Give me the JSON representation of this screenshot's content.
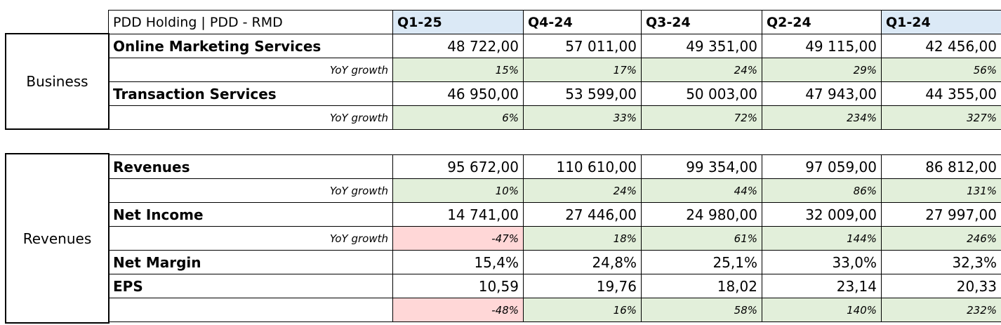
{
  "header": {
    "title": "PDD Holding | PDD - RMD",
    "quarters": [
      "Q1-25",
      "Q4-24",
      "Q3-24",
      "Q2-24",
      "Q1-24"
    ]
  },
  "business": {
    "section_label": "Business",
    "rows": [
      {
        "label": "Online Marketing Services",
        "values": [
          "48 722,00",
          "57 011,00",
          "49 351,00",
          "49 115,00",
          "42 456,00"
        ]
      },
      {
        "label": "YoY growth",
        "values": [
          "15%",
          "17%",
          "24%",
          "29%",
          "56%"
        ]
      },
      {
        "label": "Transaction Services",
        "values": [
          "46 950,00",
          "53 599,00",
          "50 003,00",
          "47 943,00",
          "44 355,00"
        ]
      },
      {
        "label": "YoY growth",
        "values": [
          "6%",
          "33%",
          "72%",
          "234%",
          "327%"
        ]
      }
    ]
  },
  "revenues": {
    "section_label": "Revenues",
    "rows": [
      {
        "label": "Revenues",
        "values": [
          "95 672,00",
          "110 610,00",
          "99 354,00",
          "97 059,00",
          "86 812,00"
        ]
      },
      {
        "label": "YoY growth",
        "values": [
          "10%",
          "24%",
          "44%",
          "86%",
          "131%"
        ]
      },
      {
        "label": "Net Income",
        "values": [
          "14 741,00",
          "27 446,00",
          "24 980,00",
          "32 009,00",
          "27 997,00"
        ]
      },
      {
        "label": "YoY growth",
        "values": [
          "-47%",
          "18%",
          "61%",
          "144%",
          "246%"
        ]
      },
      {
        "label": "Net Margin",
        "values": [
          "15,4%",
          "24,8%",
          "25,1%",
          "33,0%",
          "32,3%"
        ]
      },
      {
        "label": "EPS",
        "values": [
          "10,59",
          "19,76",
          "18,02",
          "23,14",
          "20,33"
        ]
      },
      {
        "label": "",
        "values": [
          "-48%",
          "16%",
          "58%",
          "140%",
          "232%"
        ]
      }
    ]
  },
  "colors": {
    "highlight_header": "#dbe9f6",
    "positive_growth": "#e2efda",
    "negative_growth": "#ffd7d7"
  }
}
